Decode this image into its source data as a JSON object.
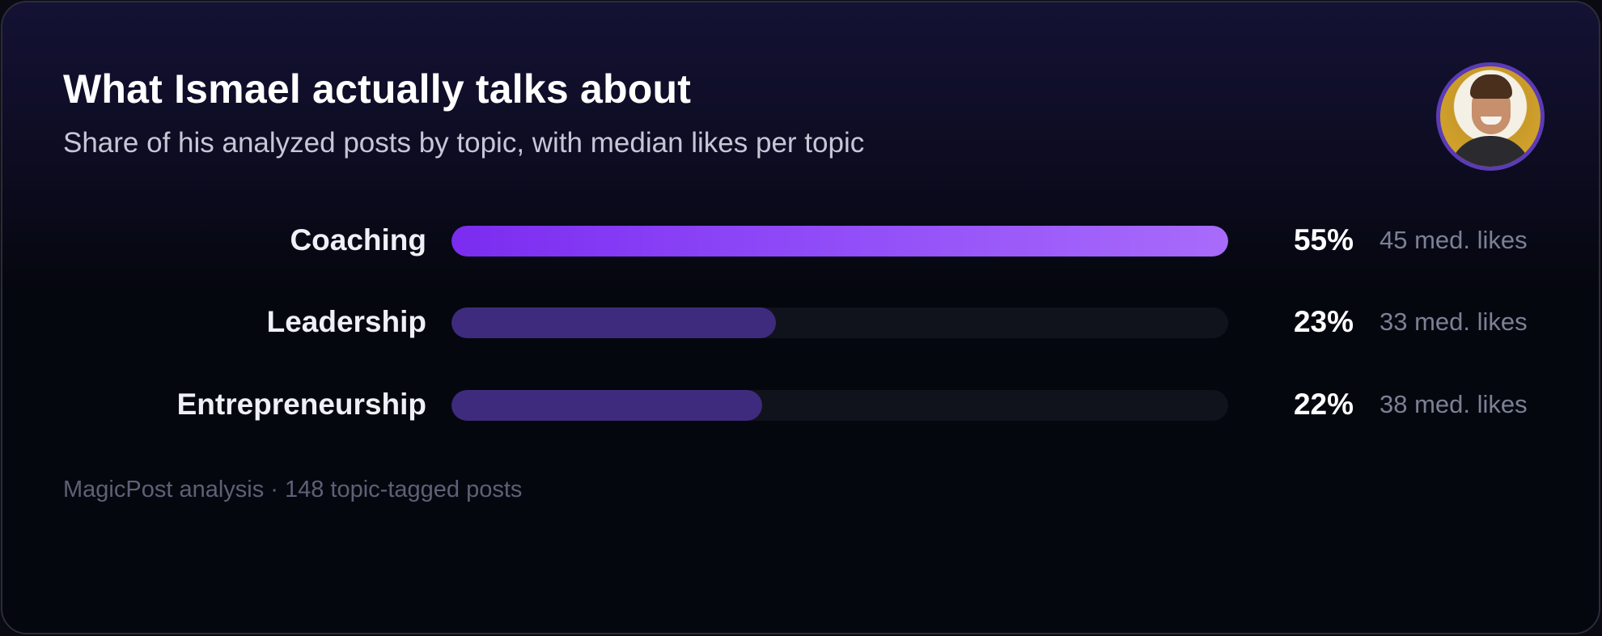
{
  "header": {
    "title": "What Ismael actually talks about",
    "subtitle": "Share of his analyzed posts by topic, with median likes per topic"
  },
  "chart_data": {
    "type": "bar",
    "orientation": "horizontal",
    "title": "What Ismael actually talks about",
    "subtitle": "Share of his analyzed posts by topic, with median likes per topic",
    "xlim": [
      0,
      55
    ],
    "categories": [
      "Coaching",
      "Leadership",
      "Entrepreneurship"
    ],
    "series": [
      {
        "values": [
          55,
          23,
          22
        ]
      }
    ],
    "value_labels": [
      "55%",
      "23%",
      "22%"
    ],
    "median_likes_labels": [
      "45 med. likes",
      "33 med. likes",
      "38 med. likes"
    ],
    "median_likes": [
      45,
      33,
      38
    ],
    "legend": "none",
    "grid": false
  },
  "rows": [
    {
      "label": "Coaching",
      "value": 55,
      "pct": "55%",
      "likes": "45 med. likes"
    },
    {
      "label": "Leadership",
      "value": 23,
      "pct": "23%",
      "likes": "33 med. likes"
    },
    {
      "label": "Entrepreneurship",
      "value": 22,
      "pct": "22%",
      "likes": "38 med. likes"
    }
  ],
  "footer": {
    "text": "MagicPost analysis · 148 topic-tagged posts"
  },
  "colors": {
    "primary_bar_start": "#7b2cf0",
    "primary_bar_end": "#a86bfb",
    "secondary_bar": "#3e2b7e",
    "track": "#10131c",
    "avatar_ring": "#5b3bb6"
  },
  "avatar": {
    "icon": "profile-photo-avatar"
  }
}
